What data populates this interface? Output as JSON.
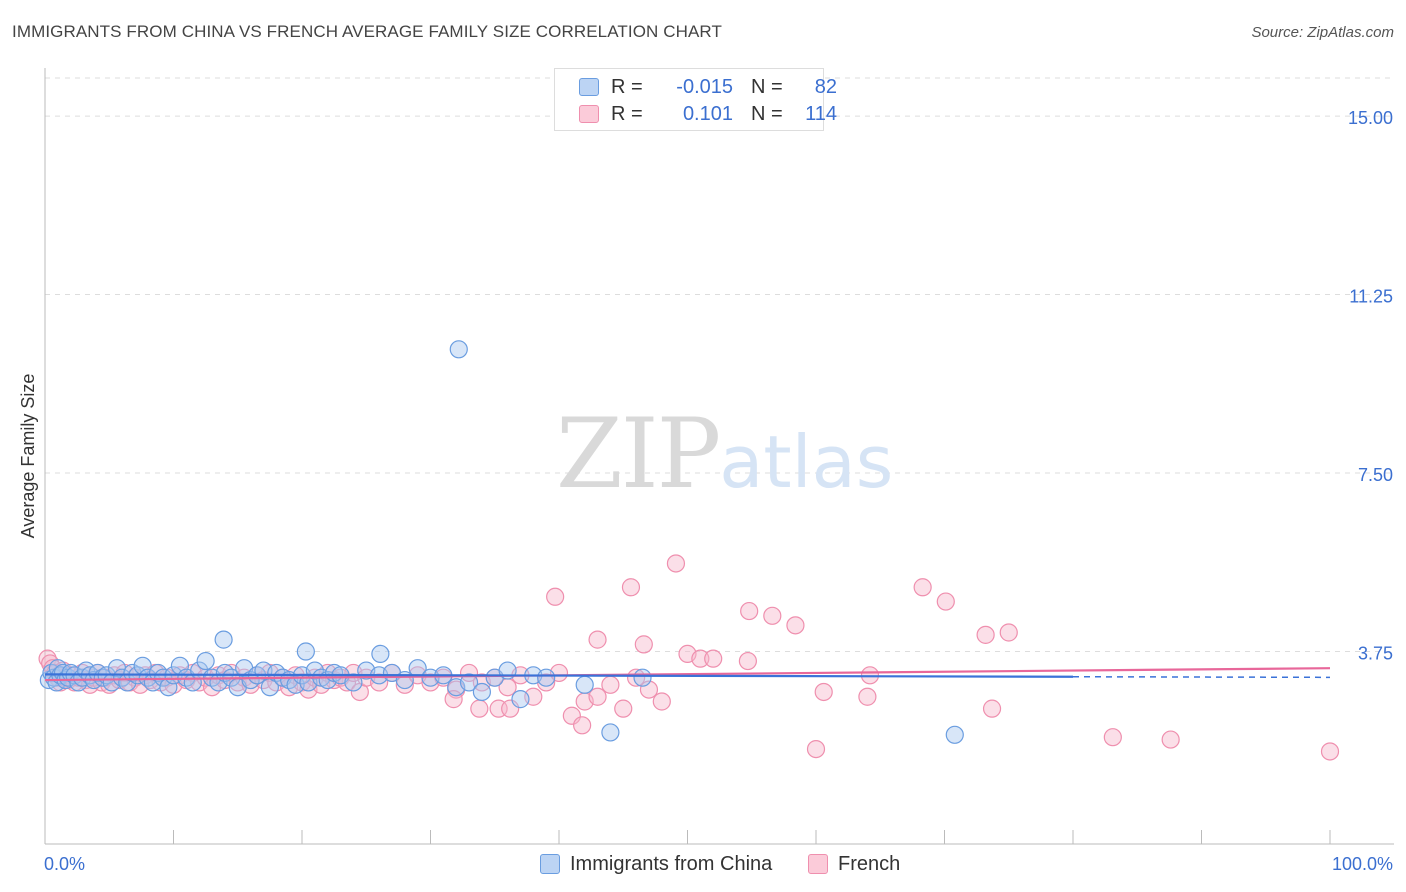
{
  "title": "IMMIGRANTS FROM CHINA VS FRENCH AVERAGE FAMILY SIZE CORRELATION CHART",
  "source": "Source: ZipAtlas.com",
  "watermark": {
    "zip": "ZIP",
    "atlas": "atlas"
  },
  "legend": {
    "china": {
      "r_label": "R =",
      "r_value": "-0.015",
      "n_label": "N =",
      "n_value": "82"
    },
    "french": {
      "r_label": "R =",
      "r_value": "0.101",
      "n_label": "N =",
      "n_value": "114"
    }
  },
  "bottom_legend": {
    "china": "Immigrants from China",
    "french": "French"
  },
  "colors": {
    "china_fill": "#a8c8f0",
    "china_stroke": "#6a9de0",
    "china_line": "#3a72d8",
    "french_fill": "#f7b8cc",
    "french_stroke": "#ef8fae",
    "french_line": "#e8679a",
    "tick_label": "#3b6fd0",
    "grid": "#dddddd"
  },
  "chart_data": {
    "type": "scatter",
    "title": "IMMIGRANTS FROM CHINA VS FRENCH AVERAGE FAMILY SIZE CORRELATION CHART",
    "xlabel": "",
    "ylabel": "Average Family Size",
    "xlim": [
      0,
      100
    ],
    "ylim": [
      0,
      15.8
    ],
    "x_tick_labels": [
      "0.0%",
      "100.0%"
    ],
    "y_ticks": [
      3.75,
      7.5,
      11.25,
      15.0
    ],
    "y_tick_labels": [
      "3.75",
      "7.50",
      "11.25",
      "15.00"
    ],
    "grid": true,
    "legend_position": "top-center",
    "series": [
      {
        "name": "Immigrants from China",
        "trend": {
          "x": [
            0,
            80
          ],
          "y": [
            3.27,
            3.22
          ]
        },
        "points": [
          [
            0.3,
            3.15
          ],
          [
            0.5,
            3.3
          ],
          [
            0.7,
            3.2
          ],
          [
            0.9,
            3.1
          ],
          [
            1.0,
            3.4
          ],
          [
            1.2,
            3.25
          ],
          [
            1.4,
            3.3
          ],
          [
            1.6,
            3.15
          ],
          [
            1.8,
            3.2
          ],
          [
            2.0,
            3.3
          ],
          [
            2.3,
            3.25
          ],
          [
            2.6,
            3.1
          ],
          [
            2.9,
            3.2
          ],
          [
            3.2,
            3.35
          ],
          [
            3.5,
            3.25
          ],
          [
            3.8,
            3.15
          ],
          [
            4.1,
            3.3
          ],
          [
            4.5,
            3.2
          ],
          [
            4.8,
            3.25
          ],
          [
            5.2,
            3.1
          ],
          [
            5.6,
            3.4
          ],
          [
            6.0,
            3.2
          ],
          [
            6.4,
            3.1
          ],
          [
            6.8,
            3.3
          ],
          [
            7.2,
            3.25
          ],
          [
            7.6,
            3.45
          ],
          [
            8.0,
            3.2
          ],
          [
            8.4,
            3.1
          ],
          [
            8.8,
            3.3
          ],
          [
            9.2,
            3.2
          ],
          [
            9.6,
            3.0
          ],
          [
            10.0,
            3.25
          ],
          [
            10.5,
            3.45
          ],
          [
            11.0,
            3.2
          ],
          [
            11.5,
            3.1
          ],
          [
            12.0,
            3.35
          ],
          [
            12.5,
            3.55
          ],
          [
            13.0,
            3.2
          ],
          [
            13.5,
            3.1
          ],
          [
            14.0,
            3.3
          ],
          [
            14.5,
            3.2
          ],
          [
            15.0,
            3.0
          ],
          [
            15.5,
            3.4
          ],
          [
            16.0,
            3.15
          ],
          [
            16.5,
            3.25
          ],
          [
            17.0,
            3.35
          ],
          [
            17.5,
            3.0
          ],
          [
            18.0,
            3.3
          ],
          [
            18.5,
            3.2
          ],
          [
            19.0,
            3.15
          ],
          [
            19.5,
            3.05
          ],
          [
            20.0,
            3.25
          ],
          [
            20.5,
            3.1
          ],
          [
            21.0,
            3.35
          ],
          [
            21.5,
            3.2
          ],
          [
            22.0,
            3.15
          ],
          [
            22.5,
            3.3
          ],
          [
            23.0,
            3.25
          ],
          [
            24.0,
            3.1
          ],
          [
            25.0,
            3.35
          ],
          [
            26.0,
            3.25
          ],
          [
            27.0,
            3.3
          ],
          [
            28.0,
            3.15
          ],
          [
            29.0,
            3.4
          ],
          [
            30.0,
            3.2
          ],
          [
            31.0,
            3.25
          ],
          [
            32.0,
            3.0
          ],
          [
            33.0,
            3.1
          ],
          [
            34.0,
            2.9
          ],
          [
            35.0,
            3.2
          ],
          [
            36.0,
            3.35
          ],
          [
            37.0,
            2.75
          ],
          [
            38.0,
            3.25
          ],
          [
            39.0,
            3.2
          ],
          [
            42.0,
            3.05
          ],
          [
            44.0,
            2.05
          ],
          [
            46.5,
            3.2
          ],
          [
            70.8,
            2.0
          ],
          [
            32.2,
            10.1
          ],
          [
            13.9,
            4.0
          ],
          [
            20.3,
            3.75
          ],
          [
            26.1,
            3.7
          ]
        ]
      },
      {
        "name": "French",
        "trend": {
          "x": [
            0,
            100
          ],
          "y": [
            3.15,
            3.4
          ]
        },
        "points": [
          [
            0.2,
            3.6
          ],
          [
            0.4,
            3.5
          ],
          [
            0.6,
            3.4
          ],
          [
            0.8,
            3.3
          ],
          [
            1.0,
            3.2
          ],
          [
            1.2,
            3.1
          ],
          [
            1.4,
            3.35
          ],
          [
            1.6,
            3.2
          ],
          [
            1.8,
            3.15
          ],
          [
            2.0,
            3.25
          ],
          [
            2.3,
            3.1
          ],
          [
            2.6,
            3.2
          ],
          [
            2.9,
            3.3
          ],
          [
            3.2,
            3.15
          ],
          [
            3.5,
            3.05
          ],
          [
            3.8,
            3.2
          ],
          [
            4.1,
            3.3
          ],
          [
            4.4,
            3.1
          ],
          [
            4.7,
            3.2
          ],
          [
            5.0,
            3.05
          ],
          [
            5.4,
            3.25
          ],
          [
            5.8,
            3.15
          ],
          [
            6.2,
            3.3
          ],
          [
            6.6,
            3.1
          ],
          [
            7.0,
            3.2
          ],
          [
            7.4,
            3.05
          ],
          [
            7.8,
            3.25
          ],
          [
            8.2,
            3.15
          ],
          [
            8.6,
            3.3
          ],
          [
            9.0,
            3.1
          ],
          [
            9.5,
            3.2
          ],
          [
            10.0,
            3.05
          ],
          [
            10.5,
            3.25
          ],
          [
            11.0,
            3.15
          ],
          [
            11.5,
            3.3
          ],
          [
            12.0,
            3.1
          ],
          [
            12.5,
            3.2
          ],
          [
            13.0,
            3.0
          ],
          [
            13.5,
            3.25
          ],
          [
            14.0,
            3.15
          ],
          [
            14.5,
            3.3
          ],
          [
            15.0,
            3.1
          ],
          [
            15.5,
            3.2
          ],
          [
            16.0,
            3.05
          ],
          [
            16.5,
            3.25
          ],
          [
            17.0,
            3.15
          ],
          [
            17.5,
            3.3
          ],
          [
            18.0,
            3.1
          ],
          [
            18.5,
            3.2
          ],
          [
            19.0,
            3.0
          ],
          [
            19.5,
            3.25
          ],
          [
            20.0,
            3.1
          ],
          [
            20.5,
            2.95
          ],
          [
            21.0,
            3.2
          ],
          [
            21.5,
            3.05
          ],
          [
            22.0,
            3.3
          ],
          [
            22.5,
            3.15
          ],
          [
            23.0,
            3.2
          ],
          [
            23.5,
            3.1
          ],
          [
            24.0,
            3.3
          ],
          [
            24.5,
            2.9
          ],
          [
            25.0,
            3.2
          ],
          [
            26.0,
            3.1
          ],
          [
            27.0,
            3.3
          ],
          [
            28.0,
            3.05
          ],
          [
            29.0,
            3.25
          ],
          [
            30.0,
            3.1
          ],
          [
            31.0,
            3.2
          ],
          [
            32.0,
            2.95
          ],
          [
            33.0,
            3.3
          ],
          [
            34.0,
            3.1
          ],
          [
            35.0,
            3.2
          ],
          [
            36.0,
            3.0
          ],
          [
            37.0,
            3.25
          ],
          [
            38.0,
            2.8
          ],
          [
            39.0,
            3.1
          ],
          [
            40.0,
            3.3
          ],
          [
            41.0,
            2.4
          ],
          [
            42.0,
            2.7
          ],
          [
            43.0,
            2.8
          ],
          [
            44.0,
            3.05
          ],
          [
            45.0,
            2.55
          ],
          [
            46.0,
            3.2
          ],
          [
            47.0,
            2.95
          ],
          [
            48.0,
            2.7
          ],
          [
            33.8,
            2.55
          ],
          [
            35.3,
            2.55
          ],
          [
            31.8,
            2.75
          ],
          [
            41.8,
            2.2
          ],
          [
            39.7,
            4.9
          ],
          [
            43.0,
            4.0
          ],
          [
            45.6,
            5.1
          ],
          [
            46.6,
            3.9
          ],
          [
            49.1,
            5.6
          ],
          [
            50.0,
            3.7
          ],
          [
            51.0,
            3.6
          ],
          [
            52.0,
            3.6
          ],
          [
            54.8,
            4.6
          ],
          [
            54.7,
            3.55
          ],
          [
            56.6,
            4.5
          ],
          [
            58.4,
            4.3
          ],
          [
            60.6,
            2.9
          ],
          [
            64.0,
            2.8
          ],
          [
            64.2,
            3.25
          ],
          [
            68.3,
            5.1
          ],
          [
            70.1,
            4.8
          ],
          [
            73.2,
            4.1
          ],
          [
            75.0,
            4.15
          ],
          [
            73.7,
            2.55
          ],
          [
            83.1,
            1.95
          ],
          [
            87.6,
            1.9
          ],
          [
            60.0,
            1.7
          ],
          [
            100.0,
            1.65
          ],
          [
            36.2,
            2.55
          ]
        ]
      }
    ]
  }
}
